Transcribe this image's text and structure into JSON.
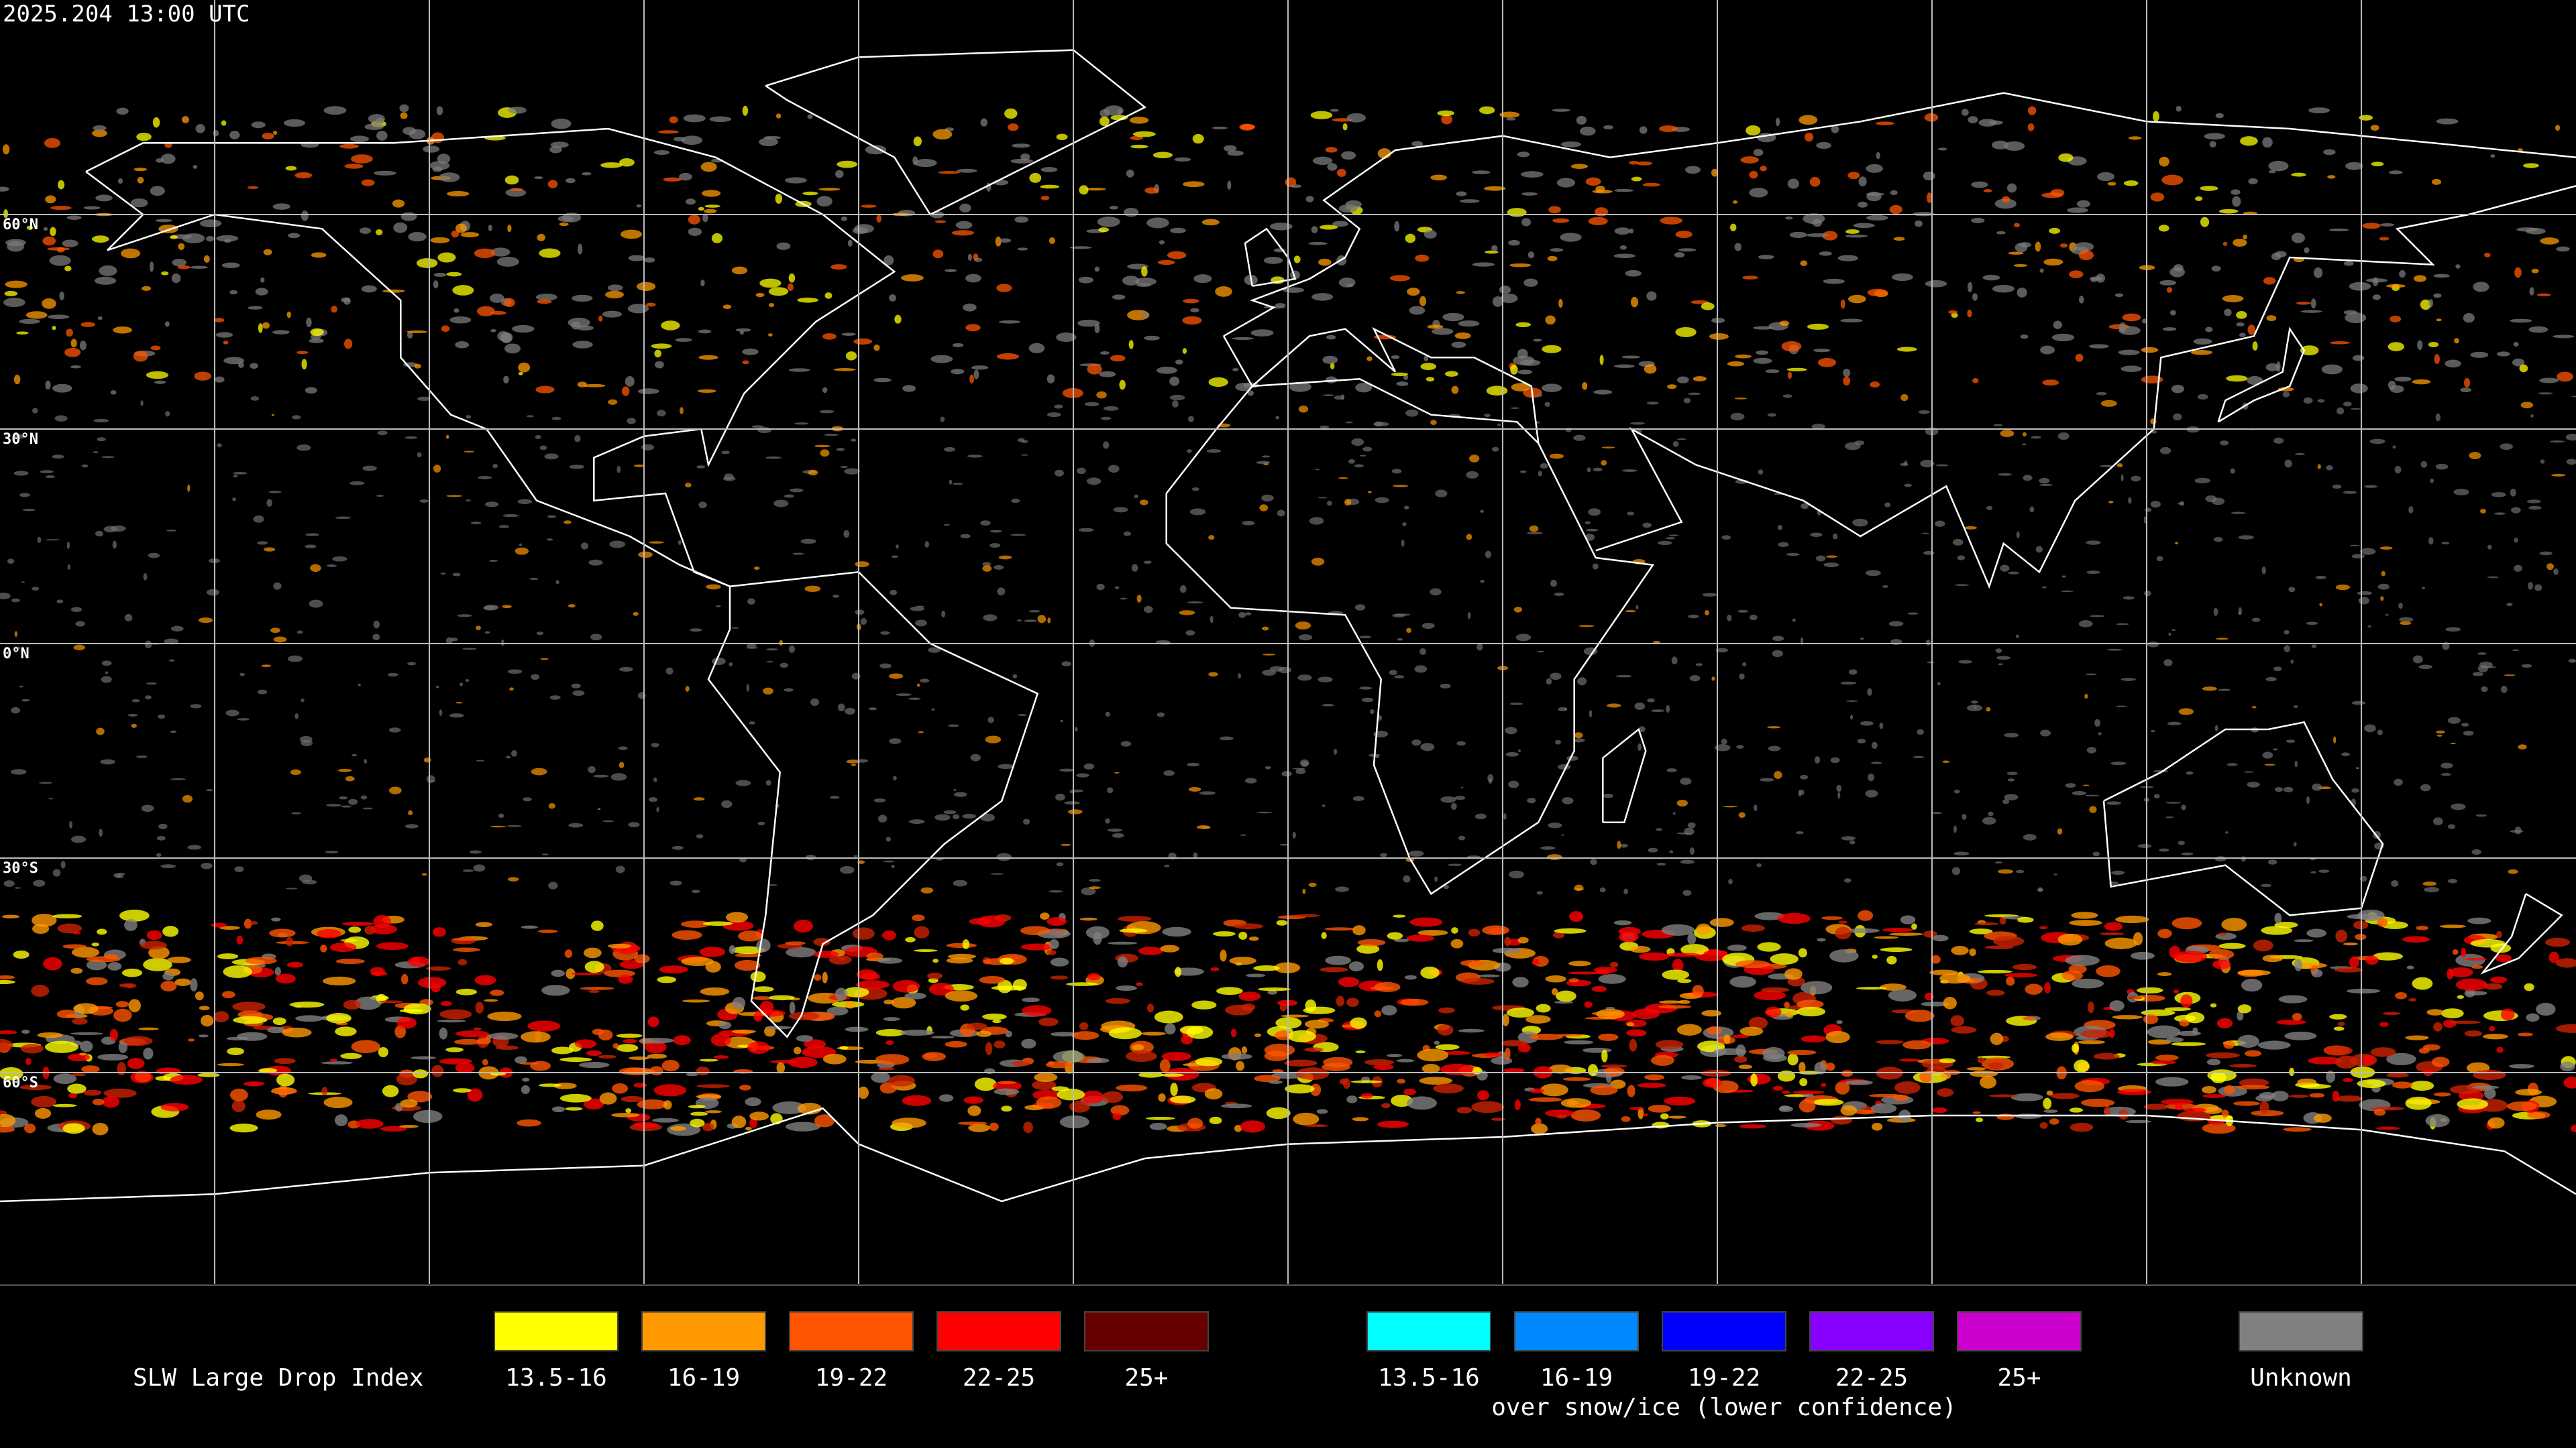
{
  "header": {
    "timestamp": "2025.204  13:00 UTC"
  },
  "map": {
    "latitude_labels": [
      "60°N",
      "30°N",
      "0°N",
      "30°S",
      "60°S"
    ]
  },
  "legend": {
    "title": "SLW Large Drop Index",
    "groups": [
      {
        "items": [
          {
            "label": "13.5-16",
            "color": "#ffff00"
          },
          {
            "label": "16-19",
            "color": "#ff9900"
          },
          {
            "label": "19-22",
            "color": "#ff5500"
          },
          {
            "label": "22-25",
            "color": "#ff0000"
          },
          {
            "label": "25+",
            "color": "#660000"
          }
        ]
      },
      {
        "items": [
          {
            "label": "13.5-16",
            "color": "#00ffff"
          },
          {
            "label": "16-19",
            "color": "#0088ff"
          },
          {
            "label": "19-22",
            "color": "#0000ff"
          },
          {
            "label": "22-25",
            "color": "#8800ff"
          },
          {
            "label": "25+",
            "color": "#cc00cc"
          }
        ],
        "caption": "over snow/ice (lower confidence)"
      },
      {
        "items": [
          {
            "label": "Unknown",
            "color": "#808080"
          }
        ]
      }
    ]
  }
}
